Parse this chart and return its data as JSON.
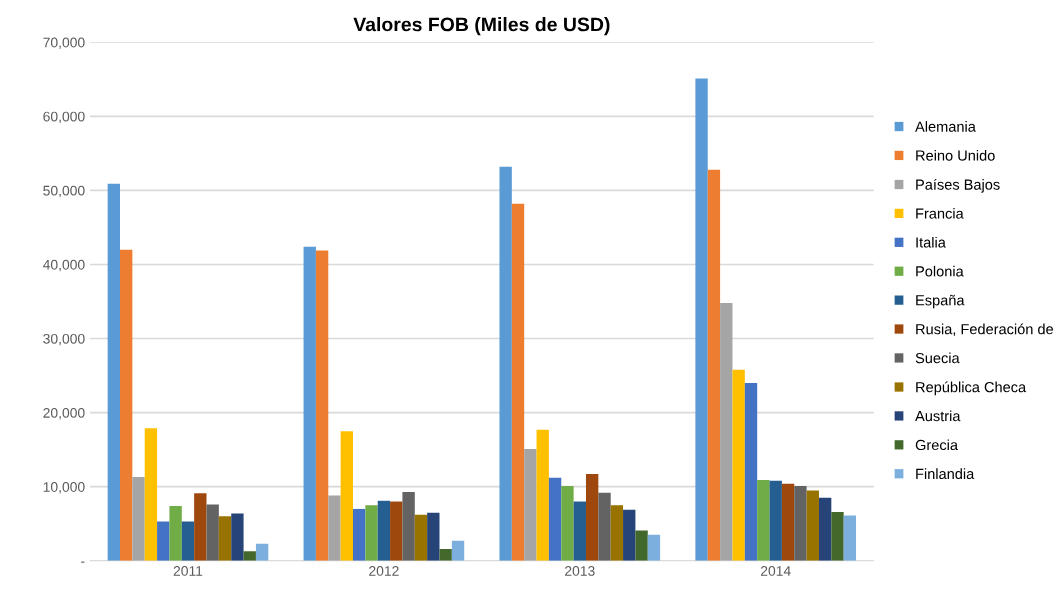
{
  "chart_data": {
    "type": "bar",
    "title": "Valores FOB (Miles de USD)",
    "categories": [
      "2011",
      "2012",
      "2013",
      "2014"
    ],
    "series": [
      {
        "name": "Alemania",
        "color": "#5b9bd5",
        "values": [
          50900,
          42400,
          53200,
          65100
        ]
      },
      {
        "name": "Reino Unido",
        "color": "#ed7d31",
        "values": [
          42000,
          41900,
          48200,
          52800
        ]
      },
      {
        "name": "Países Bajos",
        "color": "#a5a5a5",
        "values": [
          11300,
          8800,
          15100,
          34800
        ]
      },
      {
        "name": "Francia",
        "color": "#ffc000",
        "values": [
          17900,
          17500,
          17700,
          25800
        ]
      },
      {
        "name": "Italia",
        "color": "#4472c4",
        "values": [
          5300,
          7000,
          11200,
          24000
        ]
      },
      {
        "name": "Polonia",
        "color": "#70ad47",
        "values": [
          7400,
          7500,
          10100,
          10900
        ]
      },
      {
        "name": "España",
        "color": "#255e91",
        "values": [
          5300,
          8100,
          8000,
          10800
        ]
      },
      {
        "name": "Rusia, Federación de",
        "color": "#9e480e",
        "values": [
          9100,
          8000,
          11700,
          10400
        ]
      },
      {
        "name": "Suecia",
        "color": "#636363",
        "values": [
          7600,
          9300,
          9200,
          10100
        ]
      },
      {
        "name": "República Checa",
        "color": "#997300",
        "values": [
          6000,
          6200,
          7500,
          9500
        ]
      },
      {
        "name": "Austria",
        "color": "#264478",
        "values": [
          6400,
          6500,
          6900,
          8500
        ]
      },
      {
        "name": "Grecia",
        "color": "#43682b",
        "values": [
          1300,
          1600,
          4100,
          6600
        ]
      },
      {
        "name": "Finlandia",
        "color": "#7cafdd",
        "values": [
          2300,
          2700,
          3500,
          6100
        ]
      }
    ],
    "ylim": [
      0,
      70000
    ],
    "yticks": [
      {
        "value": 0,
        "label": "-"
      },
      {
        "value": 10000,
        "label": "10,000"
      },
      {
        "value": 20000,
        "label": "20,000"
      },
      {
        "value": 30000,
        "label": "30,000"
      },
      {
        "value": 40000,
        "label": "40,000"
      },
      {
        "value": 50000,
        "label": "50,000"
      },
      {
        "value": 60000,
        "label": "60,000"
      },
      {
        "value": 70000,
        "label": "70,000"
      }
    ],
    "grid": "y",
    "legend": "right"
  }
}
